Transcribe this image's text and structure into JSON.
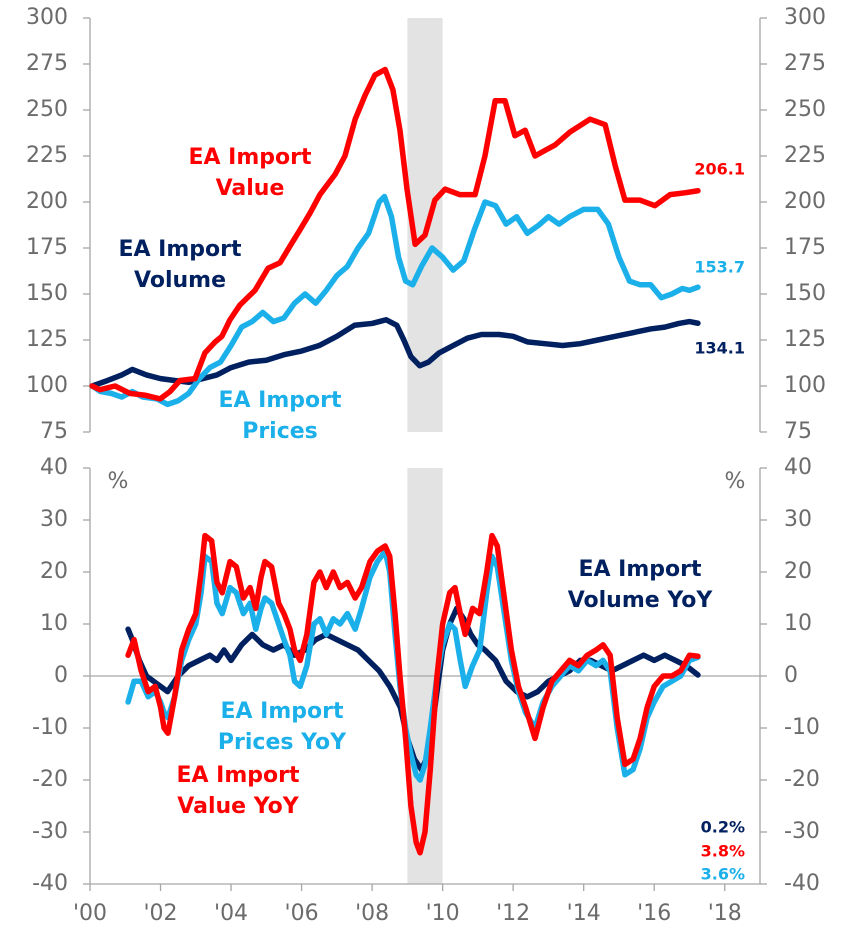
{
  "chart_data": [
    {
      "type": "line",
      "xlim": [
        2000,
        2019
      ],
      "ylim": [
        75,
        300
      ],
      "yticks": [
        75,
        100,
        125,
        150,
        175,
        200,
        225,
        250,
        275,
        300
      ],
      "y2lim": [
        75,
        300
      ],
      "y2ticks": [
        75,
        100,
        125,
        150,
        175,
        200,
        225,
        250,
        275,
        300
      ],
      "shade": [
        2009,
        2010
      ],
      "series": [
        {
          "name": [
            "EA Import",
            "Value"
          ],
          "color": "#ff0000",
          "x": [
            2000.06,
            2000.28,
            2000.71,
            2001.13,
            2001.56,
            2001.99,
            2002.27,
            2002.55,
            2002.98,
            2003.26,
            2003.55,
            2003.74,
            2003.97,
            2004.25,
            2004.68,
            2005.05,
            2005.39,
            2005.67,
            2005.96,
            2006.24,
            2006.52,
            2006.95,
            2007.23,
            2007.52,
            2007.8,
            2008.08,
            2008.37,
            2008.59,
            2008.79,
            2008.99,
            2009.22,
            2009.5,
            2009.78,
            2010.07,
            2010.49,
            2010.92,
            2011.2,
            2011.49,
            2011.77,
            2012.05,
            2012.34,
            2012.62,
            2012.9,
            2013.19,
            2013.61,
            2014.18,
            2014.61,
            2014.89,
            2015.17,
            2015.6,
            2016.02,
            2016.45,
            2016.87,
            2017.24
          ],
          "values": [
            100,
            98,
            100,
            96,
            95,
            93,
            97,
            103,
            104,
            118,
            124,
            127,
            136,
            144,
            152,
            164,
            167,
            176,
            185,
            194,
            204,
            215,
            225,
            245,
            258,
            269,
            272,
            261,
            239,
            207,
            177,
            182,
            201,
            207,
            204,
            204,
            225,
            255,
            255,
            236,
            239,
            225,
            228,
            231,
            238,
            245,
            242,
            220,
            201,
            201,
            198,
            204,
            205,
            206.1
          ]
        },
        {
          "name": [
            "EA Import",
            "Prices"
          ],
          "color": "#1cb0ea",
          "x": [
            2000.06,
            2000.3,
            2000.6,
            2000.9,
            2001.2,
            2001.5,
            2001.9,
            2002.2,
            2002.5,
            2002.8,
            2003.1,
            2003.4,
            2003.7,
            2004.0,
            2004.3,
            2004.6,
            2004.9,
            2005.2,
            2005.5,
            2005.8,
            2006.1,
            2006.4,
            2006.7,
            2007.0,
            2007.3,
            2007.6,
            2007.9,
            2008.2,
            2008.35,
            2008.55,
            2008.75,
            2008.95,
            2009.15,
            2009.4,
            2009.7,
            2010.0,
            2010.3,
            2010.6,
            2010.9,
            2011.2,
            2011.5,
            2011.8,
            2012.1,
            2012.4,
            2012.7,
            2013.0,
            2013.3,
            2013.6,
            2014.0,
            2014.4,
            2014.7,
            2015.0,
            2015.3,
            2015.6,
            2015.9,
            2016.2,
            2016.5,
            2016.8,
            2017.0,
            2017.24
          ],
          "values": [
            100,
            97,
            96,
            94,
            97,
            94,
            93,
            90,
            92,
            96,
            104,
            110,
            113,
            122,
            132,
            135,
            140,
            135,
            137,
            145,
            150,
            145,
            152,
            160,
            165,
            175,
            183,
            200,
            203,
            192,
            170,
            157,
            155,
            165,
            175,
            170,
            163,
            168,
            185,
            200,
            198,
            188,
            192,
            183,
            187,
            192,
            188,
            192,
            196,
            196,
            188,
            170,
            157,
            155,
            155,
            148,
            150,
            153,
            152,
            153.7
          ]
        },
        {
          "name": [
            "EA Import",
            "Volume"
          ],
          "color": "#002060",
          "x": [
            2000.06,
            2000.5,
            2000.9,
            2001.2,
            2001.6,
            2002.0,
            2002.4,
            2002.8,
            2003.2,
            2003.6,
            2004.0,
            2004.5,
            2005.0,
            2005.5,
            2006.0,
            2006.5,
            2007.0,
            2007.5,
            2008.0,
            2008.4,
            2008.7,
            2008.9,
            2009.1,
            2009.35,
            2009.6,
            2009.9,
            2010.3,
            2010.7,
            2011.1,
            2011.6,
            2012.0,
            2012.4,
            2012.9,
            2013.4,
            2013.9,
            2014.4,
            2014.9,
            2015.4,
            2015.9,
            2016.3,
            2016.7,
            2017.0,
            2017.24
          ],
          "values": [
            100,
            103,
            106,
            109,
            106,
            104,
            103,
            102,
            104,
            106,
            110,
            113,
            114,
            117,
            119,
            122,
            127,
            133,
            134,
            136,
            133,
            125,
            116,
            111,
            113,
            118,
            122,
            126,
            128,
            128,
            127,
            124,
            123,
            122,
            123,
            125,
            127,
            129,
            131,
            132,
            134,
            135,
            134.1
          ]
        }
      ]
    },
    {
      "type": "line",
      "xlim": [
        2000,
        2019
      ],
      "xticks": [
        {
          "value": 2000,
          "label": "'00"
        },
        {
          "value": 2002,
          "label": "'02"
        },
        {
          "value": 2004,
          "label": "'04"
        },
        {
          "value": 2006,
          "label": "'06"
        },
        {
          "value": 2008,
          "label": "'08"
        },
        {
          "value": 2010,
          "label": "'10"
        },
        {
          "value": 2012,
          "label": "'12"
        },
        {
          "value": 2014,
          "label": "'14"
        },
        {
          "value": 2016,
          "label": "'16"
        },
        {
          "value": 2018,
          "label": "'18"
        }
      ],
      "ylim": [
        -40,
        40
      ],
      "yticks": [
        -40,
        -30,
        -20,
        -10,
        0,
        10,
        20,
        30,
        40
      ],
      "y2lim": [
        -40,
        40
      ],
      "y2ticks": [
        -40,
        -30,
        -20,
        -10,
        0,
        10,
        20,
        30,
        40
      ],
      "y_unit": "%",
      "shade": [
        2009,
        2010
      ],
      "series": [
        {
          "name": [
            "EA Import",
            "Value YoY"
          ],
          "color": "#ff0000",
          "end_label": "3.8%",
          "x": [
            2001.08,
            2001.25,
            2001.45,
            2001.65,
            2001.85,
            2002.0,
            2002.1,
            2002.21,
            2002.4,
            2002.6,
            2002.8,
            2003.0,
            2003.15,
            2003.26,
            2003.45,
            2003.6,
            2003.75,
            2003.97,
            2004.15,
            2004.35,
            2004.54,
            2004.7,
            2004.85,
            2004.96,
            2005.15,
            2005.35,
            2005.5,
            2005.67,
            2005.8,
            2005.96,
            2006.15,
            2006.35,
            2006.52,
            2006.7,
            2006.9,
            2007.09,
            2007.3,
            2007.52,
            2007.7,
            2007.94,
            2008.15,
            2008.37,
            2008.5,
            2008.65,
            2008.79,
            2008.95,
            2009.1,
            2009.25,
            2009.36,
            2009.5,
            2009.65,
            2009.84,
            2010.0,
            2010.2,
            2010.35,
            2010.5,
            2010.64,
            2010.85,
            2011.05,
            2011.25,
            2011.4,
            2011.55,
            2011.75,
            2011.95,
            2012.15,
            2012.35,
            2012.62,
            2012.85,
            2013.1,
            2013.35,
            2013.6,
            2013.85,
            2014.1,
            2014.35,
            2014.55,
            2014.75,
            2014.95,
            2015.17,
            2015.4,
            2015.6,
            2015.8,
            2016.0,
            2016.25,
            2016.5,
            2016.75,
            2017.0,
            2017.24
          ],
          "values": [
            4,
            7,
            1,
            -3,
            -2,
            -6,
            -10,
            -11,
            -4,
            5,
            9,
            12,
            20,
            27,
            26,
            18,
            16,
            22,
            21,
            15,
            17,
            13,
            19,
            22,
            21,
            14,
            12,
            9,
            5,
            3,
            8,
            18,
            20,
            17,
            20,
            17,
            18,
            15,
            17,
            22,
            24,
            25,
            23,
            12,
            0,
            -12,
            -25,
            -32,
            -34,
            -30,
            -18,
            0,
            10,
            16,
            17,
            12,
            8,
            13,
            12,
            20,
            27,
            25,
            15,
            5,
            -2,
            -6,
            -12,
            -6,
            -1,
            1,
            3,
            2,
            4,
            5,
            6,
            4,
            -8,
            -17,
            -16,
            -12,
            -6,
            -2,
            0,
            0,
            1,
            4,
            3.8
          ]
        },
        {
          "name": [
            "EA Import",
            "Prices YoY"
          ],
          "color": "#1cb0ea",
          "end_label": "3.6%",
          "x": [
            2001.08,
            2001.25,
            2001.45,
            2001.65,
            2001.85,
            2002.0,
            2002.1,
            2002.21,
            2002.4,
            2002.6,
            2002.8,
            2003.0,
            2003.15,
            2003.26,
            2003.45,
            2003.6,
            2003.75,
            2003.97,
            2004.15,
            2004.35,
            2004.54,
            2004.7,
            2004.85,
            2004.96,
            2005.15,
            2005.35,
            2005.5,
            2005.67,
            2005.8,
            2005.96,
            2006.15,
            2006.35,
            2006.52,
            2006.7,
            2006.9,
            2007.09,
            2007.3,
            2007.52,
            2007.7,
            2007.94,
            2008.15,
            2008.37,
            2008.5,
            2008.65,
            2008.79,
            2008.95,
            2009.1,
            2009.25,
            2009.36,
            2009.5,
            2009.65,
            2009.84,
            2010.0,
            2010.2,
            2010.35,
            2010.5,
            2010.64,
            2010.85,
            2011.05,
            2011.25,
            2011.4,
            2011.55,
            2011.75,
            2011.95,
            2012.15,
            2012.35,
            2012.62,
            2012.85,
            2013.1,
            2013.35,
            2013.6,
            2013.85,
            2014.1,
            2014.35,
            2014.55,
            2014.75,
            2014.95,
            2015.17,
            2015.4,
            2015.6,
            2015.8,
            2016.0,
            2016.25,
            2016.5,
            2016.75,
            2017.0,
            2017.24
          ],
          "values": [
            -5,
            -1,
            -1,
            -4,
            -3,
            -5,
            -7,
            -8,
            -4,
            3,
            7,
            10,
            16,
            23,
            22,
            14,
            12,
            17,
            16,
            12,
            14,
            9,
            13,
            15,
            14,
            10,
            7,
            4,
            -1,
            -2,
            2,
            10,
            11,
            8,
            11,
            10,
            12,
            9,
            13,
            19,
            22,
            24,
            20,
            8,
            -2,
            -10,
            -15,
            -19,
            -20,
            -17,
            -10,
            0,
            6,
            10,
            9,
            3,
            -2,
            2,
            5,
            16,
            23,
            21,
            12,
            3,
            -3,
            -7,
            -10,
            -5,
            -2,
            0,
            2,
            1,
            3,
            2,
            3,
            1,
            -10,
            -19,
            -18,
            -14,
            -8,
            -5,
            -2,
            -1,
            0,
            3,
            3.6
          ]
        },
        {
          "name": [
            "EA Import",
            "Volume YoY"
          ],
          "color": "#002060",
          "end_label": "0.2%",
          "x": [
            2001.08,
            2001.2,
            2001.4,
            2001.6,
            2001.8,
            2002.0,
            2002.2,
            2002.5,
            2002.8,
            2003.1,
            2003.4,
            2003.6,
            2003.8,
            2004.0,
            2004.3,
            2004.6,
            2004.9,
            2005.2,
            2005.5,
            2005.8,
            2006.1,
            2006.4,
            2006.7,
            2007.0,
            2007.3,
            2007.6,
            2007.9,
            2008.2,
            2008.5,
            2008.8,
            2009.0,
            2009.2,
            2009.4,
            2009.6,
            2009.8,
            2010.0,
            2010.2,
            2010.4,
            2010.6,
            2010.8,
            2011.0,
            2011.2,
            2011.5,
            2011.8,
            2012.1,
            2012.4,
            2012.7,
            2013.0,
            2013.3,
            2013.6,
            2013.9,
            2014.2,
            2014.5,
            2014.8,
            2015.1,
            2015.4,
            2015.7,
            2016.0,
            2016.3,
            2016.6,
            2016.9,
            2017.24
          ],
          "values": [
            9,
            7,
            3,
            0,
            -1,
            -2,
            -3,
            0,
            2,
            3,
            4,
            3,
            5,
            3,
            6,
            8,
            6,
            5,
            6,
            4,
            5,
            7,
            8,
            7,
            6,
            5,
            3,
            1,
            -2,
            -6,
            -12,
            -16,
            -18,
            -15,
            -5,
            5,
            10,
            13,
            11,
            8,
            6,
            5,
            3,
            -1,
            -3,
            -4,
            -3,
            -1,
            0,
            1,
            3,
            3,
            2,
            1,
            2,
            3,
            4,
            3,
            4,
            3,
            2,
            0.2
          ]
        }
      ]
    }
  ]
}
